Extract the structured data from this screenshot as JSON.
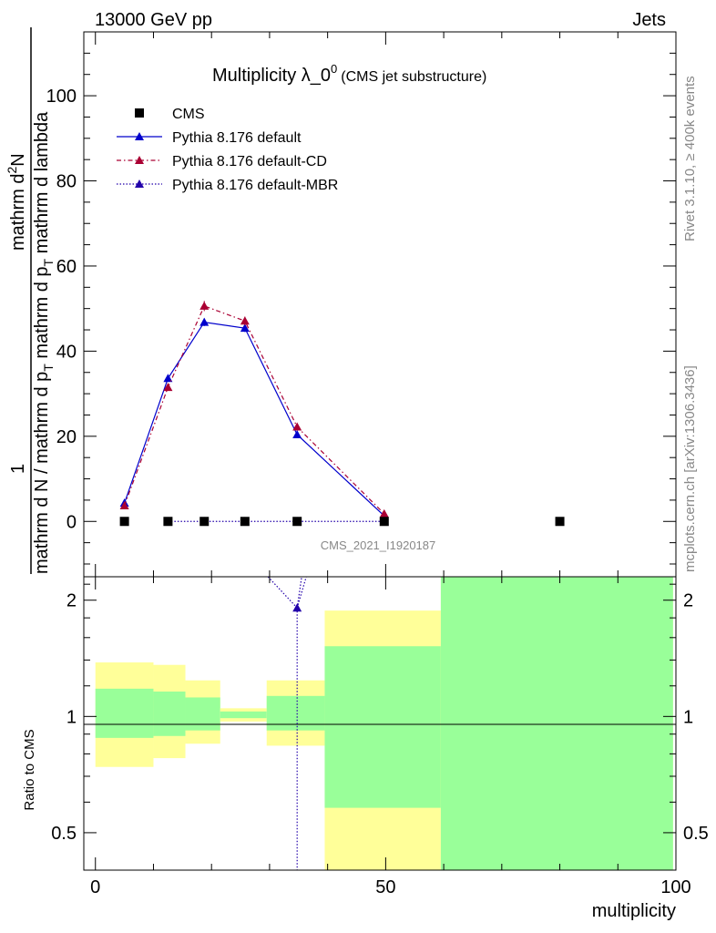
{
  "header": {
    "energy_label": "13000 GeV pp",
    "category_label": "Jets",
    "side_top": "Rivet 3.1.10, ≥ 400k events",
    "side_bottom": "mcplots.cern.ch [arXiv:1306.3436]",
    "analysis_id": "CMS_2021_I1920187"
  },
  "title": {
    "main_prefix": "Multiplicity λ_0",
    "main_sup": "0",
    "sub": "(CMS jet substructure)"
  },
  "axes": {
    "ylabel_main_parts": {
      "den": "mathrm d N / mathrm d p",
      "den_sub": "T",
      "den2": "mathrm d p",
      "den2_sub": "T",
      "den3": "mathrm d lambda",
      "num_prefix": "1",
      "num": "mathrm d",
      "num_sup": "2",
      "num2": "N"
    },
    "ylabel_ratio": "Ratio to CMS",
    "xlabel": "multiplicity",
    "x_ticks": [
      "0",
      "50",
      "100"
    ],
    "y_ticks_main": [
      "0",
      "20",
      "40",
      "60",
      "80",
      "100"
    ],
    "y_ticks_ratio": [
      "0.5",
      "1",
      "2"
    ]
  },
  "legend": [
    {
      "label": "CMS",
      "color": "#000000",
      "style": "marker"
    },
    {
      "label": "Pythia 8.176 default",
      "color": "#0000cc",
      "style": "solid"
    },
    {
      "label": "Pythia 8.176 default-CD",
      "color": "#aa0033",
      "style": "dashdot"
    },
    {
      "label": "Pythia 8.176 default-MBR",
      "color": "#2200aa",
      "style": "dotted"
    }
  ],
  "chart_data": {
    "type": "line",
    "xlim": [
      -2,
      100
    ],
    "ylim_main": [
      -13,
      115
    ],
    "ylim_ratio": [
      0.4,
      2.3
    ],
    "ratio_log": true,
    "grid": false,
    "legend_position": "top-left",
    "cms": {
      "x": [
        5,
        12.5,
        18.75,
        25.75,
        34.75,
        49.75,
        80
      ],
      "y": [
        0,
        0,
        0,
        0,
        0,
        0,
        0
      ]
    },
    "series": [
      {
        "name": "Pythia 8.176 default",
        "color": "#0000cc",
        "dash": "solid",
        "x": [
          5,
          12.5,
          18.75,
          25.75,
          34.75,
          49.75
        ],
        "y": [
          4.3,
          33.6,
          46.8,
          45.4,
          20.4,
          1.3
        ],
        "err": [
          0.4,
          0.8,
          0.9,
          0.9,
          0.7,
          0.3
        ]
      },
      {
        "name": "Pythia 8.176 default-CD",
        "color": "#aa0033",
        "dash": "dashdot",
        "x": [
          5,
          12.5,
          18.75,
          25.75,
          34.75,
          49.75
        ],
        "y": [
          3.7,
          31.5,
          50.6,
          47.1,
          22.2,
          1.8
        ],
        "err": [
          0.4,
          0.8,
          1.2,
          1.0,
          0.7,
          0.3
        ]
      },
      {
        "name": "Pythia 8.176 default-MBR",
        "color": "#2200aa",
        "dash": "dotted",
        "x": [
          12.5,
          18.75,
          25.75,
          34.75,
          49.75
        ],
        "y": [
          0,
          0,
          0,
          0,
          0
        ],
        "err": [
          0,
          0,
          0,
          0,
          0
        ]
      }
    ],
    "ratio_bands": [
      {
        "x0": 0,
        "x1": 10,
        "y_lo": 0.74,
        "y_hi": 1.38,
        "g_lo": 0.88,
        "g_hi": 1.18
      },
      {
        "x0": 10,
        "x1": 15.5,
        "y_lo": 0.78,
        "y_hi": 1.36,
        "g_lo": 0.89,
        "g_hi": 1.16
      },
      {
        "x0": 15.5,
        "x1": 21.5,
        "y_lo": 0.85,
        "y_hi": 1.24,
        "g_lo": 0.92,
        "g_hi": 1.12
      },
      {
        "x0": 21.5,
        "x1": 29.5,
        "y_lo": 0.97,
        "y_hi": 1.05,
        "g_lo": 0.99,
        "g_hi": 1.03
      },
      {
        "x0": 29.5,
        "x1": 39.5,
        "y_lo": 0.84,
        "y_hi": 1.24,
        "g_lo": 0.92,
        "g_hi": 1.13
      },
      {
        "x0": 39.5,
        "x1": 59.5,
        "y_lo": 0.4,
        "y_hi": 1.88,
        "g_lo": 0.58,
        "g_hi": 1.52
      },
      {
        "x0": 59.5,
        "x1": 99.5,
        "y_lo": 0.4,
        "y_hi": 2.3,
        "g_lo": 0.4,
        "g_hi": 2.3
      }
    ],
    "ratio_mbr_point": {
      "x": 34.75,
      "y": 1.91
    }
  }
}
